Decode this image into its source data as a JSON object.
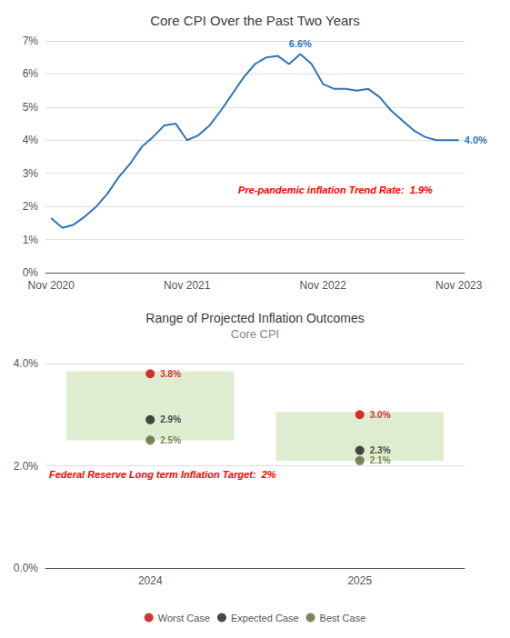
{
  "chart_data": [
    {
      "type": "line",
      "title": "Core CPI Over the Past Two Years",
      "categories": [
        "Nov 2020",
        null,
        null,
        null,
        null,
        null,
        null,
        null,
        null,
        null,
        null,
        null,
        "Nov 2021",
        null,
        null,
        null,
        null,
        null,
        null,
        null,
        null,
        null,
        null,
        null,
        "Nov 2022",
        null,
        null,
        null,
        null,
        null,
        null,
        null,
        null,
        null,
        null,
        null,
        "Nov 2023"
      ],
      "values": [
        1.65,
        1.35,
        1.45,
        1.7,
        2.0,
        2.4,
        2.9,
        3.3,
        3.8,
        4.1,
        4.45,
        4.5,
        4.0,
        4.15,
        4.45,
        4.9,
        5.4,
        5.9,
        6.3,
        6.5,
        6.55,
        6.3,
        6.6,
        6.3,
        5.7,
        5.55,
        5.55,
        5.5,
        5.55,
        5.3,
        4.9,
        4.6,
        4.3,
        4.1,
        4.0,
        4.0,
        4.0
      ],
      "color": "#2E75B6",
      "ylim": [
        0,
        7
      ],
      "yticks": [
        {
          "value": 0,
          "label": "0%"
        },
        {
          "value": 1,
          "label": "1%"
        },
        {
          "value": 2,
          "label": "2%"
        },
        {
          "value": 3,
          "label": "3%"
        },
        {
          "value": 4,
          "label": "4%"
        },
        {
          "value": 5,
          "label": "5%"
        },
        {
          "value": 6,
          "label": "6%"
        },
        {
          "value": 7,
          "label": "7%"
        }
      ],
      "grid": true,
      "annotations": [
        {
          "text": "6.6%",
          "index": 22,
          "value": 6.6
        },
        {
          "text": "4.0%",
          "index": 36,
          "value": 4.0
        },
        {
          "text": "Pre-pandemic inflation Trend Rate:  1.9%",
          "color": "#FF0000"
        }
      ]
    },
    {
      "type": "scatter",
      "title": "Range of Projected Inflation Outcomes",
      "subtitle": "Core CPI",
      "categories": [
        "2024",
        "2025"
      ],
      "series": [
        {
          "name": "Worst Case",
          "color": "#CC0000",
          "values": [
            3.8,
            3.0
          ],
          "value_labels": [
            "3.8%",
            "3.0%"
          ]
        },
        {
          "name": "Expected Case",
          "color": "#1a1a1a",
          "values": [
            2.9,
            2.3
          ],
          "value_labels": [
            "2.9%",
            "2.3%"
          ]
        },
        {
          "name": "Best Case",
          "color": "#556B2F",
          "values": [
            2.5,
            2.1
          ],
          "value_labels": [
            "2.5%",
            "2.1%"
          ]
        }
      ],
      "bands": {
        "color": "#deecd0",
        "low": [
          2.5,
          2.1
        ],
        "high": [
          3.85,
          3.05
        ]
      },
      "ylim": [
        0,
        4
      ],
      "yticks": [
        {
          "value": 0,
          "label": "0.0%"
        },
        {
          "value": 2,
          "label": "2.0%"
        },
        {
          "value": 4,
          "label": "4.0%"
        }
      ],
      "grid": true,
      "data_labels": true,
      "legend": "bottom",
      "annotations": [
        {
          "text": "Federal Reserve Long term Inflation Target:  2%",
          "value": 2,
          "color": "#FF0000"
        }
      ]
    }
  ]
}
